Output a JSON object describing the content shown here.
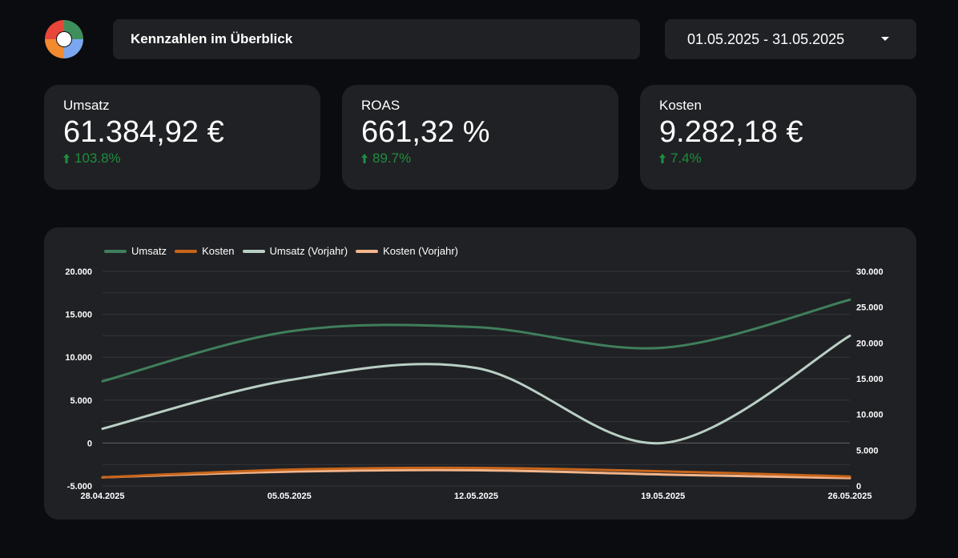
{
  "header": {
    "title": "Kennzahlen im Überblick",
    "date_range": "01.05.2025 - 31.05.2025",
    "logo_icon": "four-color-ring-logo"
  },
  "kpis": [
    {
      "label": "Umsatz",
      "value": "61.384,92 €",
      "delta": "103.8%",
      "trend": "up"
    },
    {
      "label": "ROAS",
      "value": "661,32 %",
      "delta": "89.7%",
      "trend": "up"
    },
    {
      "label": "Kosten",
      "value": "9.282,18 €",
      "delta": "7.4%",
      "trend": "up"
    }
  ],
  "colors": {
    "background": "#0b0c0f",
    "card": "#202124",
    "positive": "#1e8e3e",
    "umsatz": "#3f7f5c",
    "kosten": "#c8651b",
    "umsatz_vorjahr": "#b9cfc4",
    "kosten_vorjahr": "#f2b58c"
  },
  "chart_data": {
    "type": "line",
    "x": [
      "28.04.2025",
      "05.05.2025",
      "12.05.2025",
      "19.05.2025",
      "26.05.2025"
    ],
    "x_tick_labels": [
      "28.04.2025",
      "05.05.2025",
      "12.05.2025",
      "19.05.2025",
      "26.05.2025"
    ],
    "y_left": {
      "ylim": [
        -5000,
        20000
      ],
      "ticks": [
        "20.000",
        "15.000",
        "10.000",
        "5.000",
        "0",
        "-5.000"
      ],
      "tick_values": [
        20000,
        15000,
        10000,
        5000,
        0,
        -5000
      ]
    },
    "y_right": {
      "ylim": [
        0,
        30000
      ],
      "ticks": [
        "30.000",
        "25.000",
        "20.000",
        "15.000",
        "10.000",
        "5.000",
        "0"
      ],
      "tick_values": [
        30000,
        25000,
        20000,
        15000,
        10000,
        5000,
        0
      ]
    },
    "grid": true,
    "legend": "top-left",
    "series": [
      {
        "name": "Umsatz",
        "axis": "left",
        "color": "#3f7f5c",
        "values": [
          7200,
          13000,
          13500,
          11100,
          16700
        ]
      },
      {
        "name": "Kosten",
        "axis": "left",
        "color": "#c8651b",
        "values": [
          -4000,
          -3100,
          -2900,
          -3300,
          -3900
        ]
      },
      {
        "name": "Umsatz (Vorjahr)",
        "axis": "right",
        "color": "#b9cfc4",
        "values": [
          8000,
          14800,
          16500,
          6000,
          21000
        ]
      },
      {
        "name": "Kosten (Vorjahr)",
        "axis": "right",
        "color": "#f2b58c",
        "values": [
          1200,
          2000,
          2200,
          1600,
          1100
        ]
      }
    ]
  }
}
